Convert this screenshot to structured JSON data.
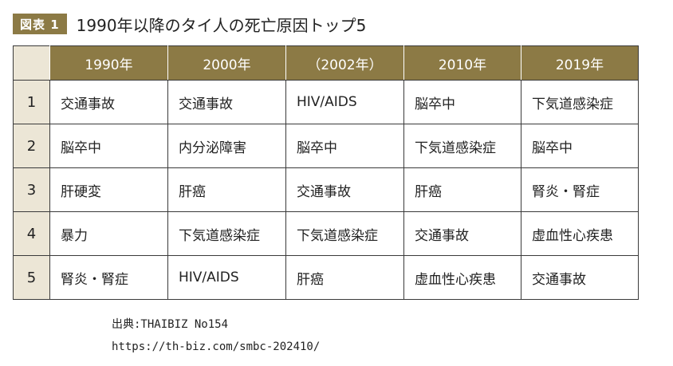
{
  "figure": {
    "badge": "図表 1",
    "title": "1990年以降のタイ人の死亡原因トップ5"
  },
  "table": {
    "headers": [
      "",
      "1990年",
      "2000年",
      "（2002年）",
      "2010年",
      "2019年"
    ],
    "rows": [
      {
        "rank": "1",
        "cells": [
          "交通事故",
          "交通事故",
          "HIV/AIDS",
          "脳卒中",
          "下気道感染症"
        ]
      },
      {
        "rank": "2",
        "cells": [
          "脳卒中",
          "内分泌障害",
          "脳卒中",
          "下気道感染症",
          "脳卒中"
        ]
      },
      {
        "rank": "3",
        "cells": [
          "肝硬変",
          "肝癌",
          "交通事故",
          "肝癌",
          "腎炎・腎症"
        ]
      },
      {
        "rank": "4",
        "cells": [
          "暴力",
          "下気道感染症",
          "下気道感染症",
          "交通事故",
          "虚血性心疾患"
        ]
      },
      {
        "rank": "5",
        "cells": [
          "腎炎・腎症",
          "HIV/AIDS",
          "肝癌",
          "虚血性心疾患",
          "交通事故"
        ]
      }
    ]
  },
  "source": {
    "line1": "出典:THAIBIZ No154",
    "line2": "https://th-biz.com/smbc-202410/"
  },
  "colors": {
    "header_bg": "#8c7a45",
    "rank_bg": "#ece6d6"
  }
}
